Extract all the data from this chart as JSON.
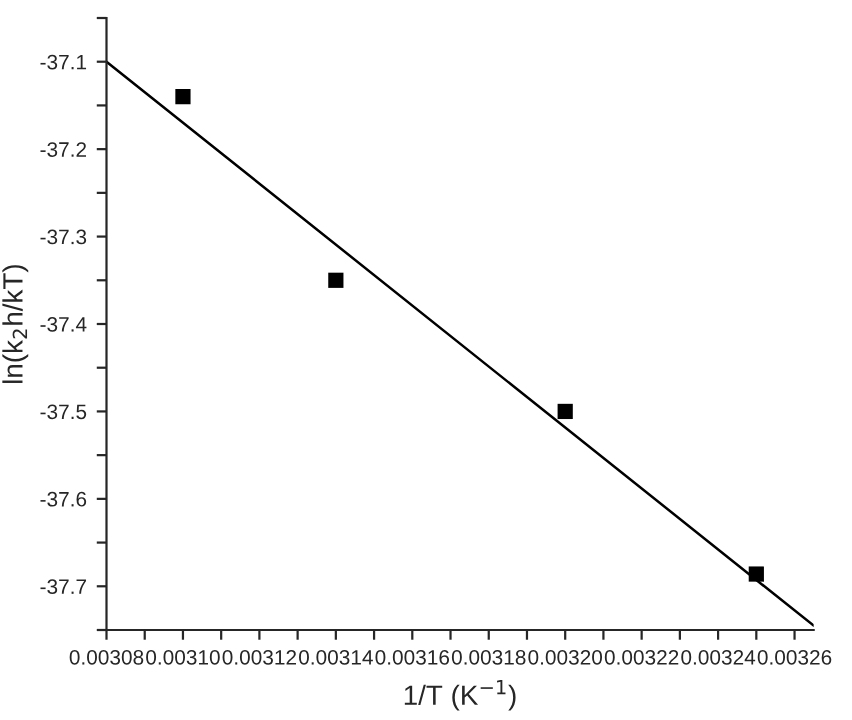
{
  "chart_data": {
    "type": "scatter",
    "xlabel": "1/T (K$^{−1}$)",
    "ylabel": "ln(k$_{2}$h/kT)",
    "xlim": [
      0.00308,
      0.003265
    ],
    "ylim": [
      -37.75,
      -37.05
    ],
    "xticks": [
      {
        "value": 0.00308,
        "label": "0.00308"
      },
      {
        "value": 0.00309,
        "label": null
      },
      {
        "value": 0.0031,
        "label": "0.00310"
      },
      {
        "value": 0.00311,
        "label": null
      },
      {
        "value": 0.00312,
        "label": "0.00312"
      },
      {
        "value": 0.00313,
        "label": null
      },
      {
        "value": 0.00314,
        "label": "0.00314"
      },
      {
        "value": 0.00315,
        "label": null
      },
      {
        "value": 0.00316,
        "label": "0.00316"
      },
      {
        "value": 0.00317,
        "label": null
      },
      {
        "value": 0.00318,
        "label": "0.00318"
      },
      {
        "value": 0.00319,
        "label": null
      },
      {
        "value": 0.0032,
        "label": "0.00320"
      },
      {
        "value": 0.00321,
        "label": null
      },
      {
        "value": 0.00322,
        "label": "0.00322"
      },
      {
        "value": 0.00323,
        "label": null
      },
      {
        "value": 0.00324,
        "label": "0.00324"
      },
      {
        "value": 0.00325,
        "label": null
      },
      {
        "value": 0.00326,
        "label": "0.00326"
      }
    ],
    "yticks": [
      {
        "value": -37.75,
        "label": null
      },
      -37.7,
      {
        "value": -37.65,
        "label": null
      },
      -37.6,
      {
        "value": -37.55,
        "label": null
      },
      -37.5,
      {
        "value": -37.45,
        "label": null
      },
      -37.4,
      {
        "value": -37.35,
        "label": null
      },
      -37.3,
      {
        "value": -37.25,
        "label": null
      },
      -37.2,
      {
        "value": -37.15,
        "label": null
      },
      -37.1,
      {
        "value": -37.05,
        "label": null
      }
    ],
    "grid": false,
    "series": [
      {
        "marker": "square",
        "color": "#000000",
        "x": [
          0.0031,
          0.00314,
          0.0032,
          0.00325
        ],
        "values": [
          -37.14,
          -37.35,
          -37.5,
          -37.686
        ]
      },
      {
        "type": "line",
        "marker": "none",
        "color": "#000000",
        "x": [
          0.00308,
          0.003265
        ],
        "values": [
          -37.1,
          -37.745
        ]
      }
    ]
  }
}
